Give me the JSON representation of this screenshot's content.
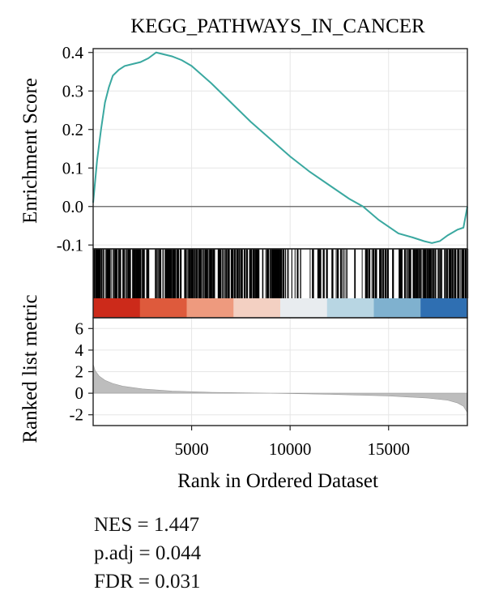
{
  "chart_data": {
    "type": "line",
    "title": "KEGG_PATHWAYS_IN_CANCER",
    "xlabel": "Rank in Ordered Dataset",
    "xlim": [
      0,
      19000
    ],
    "x_ticks": [
      5000,
      10000,
      15000
    ],
    "x_tick_labels": [
      "5000",
      "10000",
      "15000"
    ],
    "grid": true,
    "panels": {
      "enrichment": {
        "ylabel": "Enrichment Score",
        "ylim": [
          -0.11,
          0.41
        ],
        "y_ticks": [
          0.4,
          0.3,
          0.2,
          0.1,
          0.0,
          -0.1
        ],
        "y_tick_labels": [
          "0.4",
          "0.3",
          "0.2",
          "0.1",
          "0.0",
          "-0.1"
        ],
        "line_color": "#3aa8a0",
        "series": [
          {
            "x": [
              0,
              200,
              400,
              600,
              800,
              1000,
              1300,
              1600,
              2000,
              2400,
              2800,
              3200,
              3600,
              4000,
              4500,
              5000,
              6000,
              7000,
              8000,
              9000,
              10000,
              11000,
              12000,
              13000,
              13700,
              14500,
              15500,
              16200,
              16800,
              17200,
              17600,
              18000,
              18500,
              18800,
              19000
            ],
            "y": [
              0.01,
              0.12,
              0.2,
              0.27,
              0.31,
              0.34,
              0.355,
              0.365,
              0.37,
              0.375,
              0.385,
              0.4,
              0.395,
              0.39,
              0.38,
              0.365,
              0.32,
              0.27,
              0.22,
              0.175,
              0.13,
              0.09,
              0.055,
              0.02,
              0.0,
              -0.035,
              -0.07,
              -0.08,
              -0.09,
              -0.095,
              -0.09,
              -0.075,
              -0.06,
              -0.055,
              0.0
            ]
          }
        ]
      },
      "hits": {
        "bar_color": "#000000",
        "heat_colors": [
          "#cc2a1a",
          "#de5a3c",
          "#ee9a7e",
          "#f3d0c2",
          "#e8ecef",
          "#b8d6e3",
          "#7fb1cf",
          "#2f6fb2"
        ]
      },
      "ranked": {
        "ylabel": "Ranked list metric",
        "ylim": [
          -3,
          7
        ],
        "y_ticks": [
          6,
          4,
          2,
          0,
          -2
        ],
        "y_tick_labels": [
          "6",
          "4",
          "2",
          "0",
          "-2"
        ],
        "fill_color": "#bdbdbd",
        "series": [
          {
            "x": [
              0,
              100,
              300,
              600,
              1000,
              1500,
              2500,
              4000,
              6000,
              9000,
              12000,
              15000,
              17000,
              18000,
              18500,
              18800,
              19000
            ],
            "y": [
              2.7,
              2.1,
              1.6,
              1.2,
              0.9,
              0.65,
              0.4,
              0.2,
              0.08,
              0.0,
              -0.1,
              -0.25,
              -0.45,
              -0.65,
              -0.9,
              -1.2,
              -1.8
            ]
          }
        ]
      }
    }
  },
  "stats": {
    "nes": "NES = 1.447",
    "padj": "p.adj = 0.044",
    "fdr": "FDR = 0.031"
  }
}
